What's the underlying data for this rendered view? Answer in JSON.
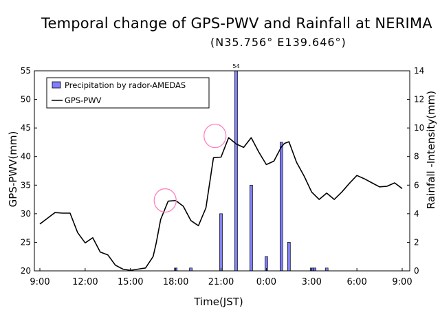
{
  "title": "Temporal change of  GPS-PWV and Rainfall at NERIMA",
  "subtitle": "(N35.756°  E139.646°)",
  "chart_data": {
    "type": "bar+line",
    "xlabel": "Time(JST)",
    "ylabel_left": "GPS-PWV(mm)",
    "ylabel_right": "Rainfall -Intensity(mm)",
    "x_tick_labels": [
      "9:00",
      "12:00",
      "15:00",
      "18:00",
      "21:00",
      "0:00",
      "3:00",
      "6:00",
      "9:00"
    ],
    "x_range_hours": [
      0,
      24
    ],
    "ylim_left": [
      20,
      55
    ],
    "left_ticks": [
      20,
      25,
      30,
      35,
      40,
      45,
      50,
      55
    ],
    "ylim_right": [
      0,
      14
    ],
    "right_ticks": [
      0,
      2,
      4,
      6,
      8,
      10,
      12,
      14
    ],
    "legend": [
      "Precipitation by rador-AMEDAS",
      "GPS-PWV"
    ],
    "legend_position": "top-left",
    "bar_color": "#8080ff",
    "line_color": "#000000",
    "highlight_color": "#ff80c0",
    "rainfall": {
      "name": "Precipitation by rador-AMEDAS",
      "x": [
        9.0,
        10.0,
        12.0,
        13.0,
        14.0,
        15.0,
        16.0,
        16.5,
        18.0,
        18.2,
        19.0
      ],
      "y": [
        0.2,
        0.2,
        4.0,
        14.0,
        6.0,
        1.0,
        9.0,
        2.0,
        0.2,
        0.2,
        0.2
      ],
      "overflow_labels": [
        "",
        "",
        "",
        "54",
        "",
        "",
        "",
        "",
        "",
        "",
        ""
      ]
    },
    "pwv": {
      "name": "GPS-PWV",
      "x": [
        0.0,
        0.5,
        1.0,
        1.5,
        2.0,
        2.5,
        3.0,
        3.5,
        4.0,
        4.5,
        5.0,
        5.5,
        6.0,
        6.5,
        7.0,
        7.5,
        7.7,
        8.0,
        8.5,
        9.0,
        9.5,
        10.0,
        10.5,
        11.0,
        11.5,
        12.0,
        12.5,
        13.0,
        13.5,
        14.0,
        14.5,
        15.0,
        15.5,
        16.0,
        16.2,
        16.5,
        17.0,
        17.5,
        18.0,
        18.5,
        19.0,
        19.5,
        20.0,
        20.5,
        21.0,
        21.5,
        22.0,
        22.5,
        23.0,
        23.5,
        24.0
      ],
      "y": [
        28.2,
        29.2,
        30.2,
        30.1,
        30.1,
        26.7,
        24.9,
        25.8,
        23.3,
        22.8,
        21.0,
        20.3,
        20.1,
        20.3,
        20.5,
        22.5,
        24.8,
        29.0,
        32.2,
        32.3,
        31.3,
        28.8,
        27.9,
        31.0,
        39.8,
        39.9,
        43.3,
        42.2,
        41.6,
        43.3,
        40.8,
        38.6,
        39.2,
        41.7,
        42.3,
        42.6,
        39.0,
        36.6,
        33.8,
        32.5,
        33.6,
        32.5,
        33.8,
        35.3,
        36.7,
        36.1,
        35.4,
        34.7,
        34.8,
        35.4,
        34.4
      ]
    },
    "highlights": [
      {
        "x": 8.3,
        "y": 32.2
      },
      {
        "x": 11.6,
        "y": 43.5
      }
    ]
  }
}
